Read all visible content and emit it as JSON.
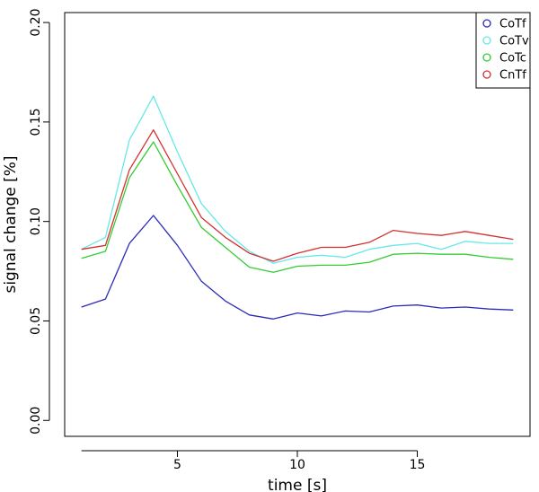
{
  "chart_data": {
    "type": "line",
    "title": "",
    "xlabel": "time [s]",
    "ylabel": "signal change [%]",
    "xlim": [
      0.3,
      19.7
    ],
    "ylim": [
      -0.008,
      0.205
    ],
    "xticks": [
      5,
      10,
      15
    ],
    "yticks": [
      0.0,
      0.05,
      0.1,
      0.15,
      0.2
    ],
    "ytick_labels": [
      "0.00",
      "0.05",
      "0.10",
      "0.15",
      "0.20"
    ],
    "grid": false,
    "legend_position": "top-right",
    "legend_marker": "open-circle",
    "x": [
      1,
      2,
      3,
      4,
      5,
      6,
      7,
      8,
      9,
      10,
      11,
      12,
      13,
      14,
      15,
      16,
      17,
      18,
      19
    ],
    "series": [
      {
        "name": "CoTf",
        "color": "#2b2bb8",
        "values": [
          0.057,
          0.061,
          0.089,
          0.103,
          0.088,
          0.07,
          0.06,
          0.053,
          0.051,
          0.054,
          0.0525,
          0.055,
          0.0545,
          0.0575,
          0.058,
          0.0565,
          0.057,
          0.056,
          0.0555
        ]
      },
      {
        "name": "CoTv",
        "color": "#66e8e8",
        "values": [
          0.086,
          0.092,
          0.141,
          0.163,
          0.135,
          0.109,
          0.095,
          0.085,
          0.079,
          0.082,
          0.083,
          0.082,
          0.086,
          0.088,
          0.089,
          0.086,
          0.09,
          0.089,
          0.089
        ]
      },
      {
        "name": "CoTc",
        "color": "#33cc33",
        "values": [
          0.0815,
          0.085,
          0.122,
          0.14,
          0.118,
          0.097,
          0.087,
          0.077,
          0.0745,
          0.0775,
          0.078,
          0.078,
          0.0795,
          0.0835,
          0.084,
          0.0835,
          0.0835,
          0.082,
          0.081
        ]
      },
      {
        "name": "CnTf",
        "color": "#d43030",
        "values": [
          0.086,
          0.088,
          0.126,
          0.146,
          0.124,
          0.102,
          0.092,
          0.084,
          0.08,
          0.084,
          0.087,
          0.087,
          0.0895,
          0.0955,
          0.094,
          0.093,
          0.095,
          0.093,
          0.091
        ]
      }
    ]
  }
}
